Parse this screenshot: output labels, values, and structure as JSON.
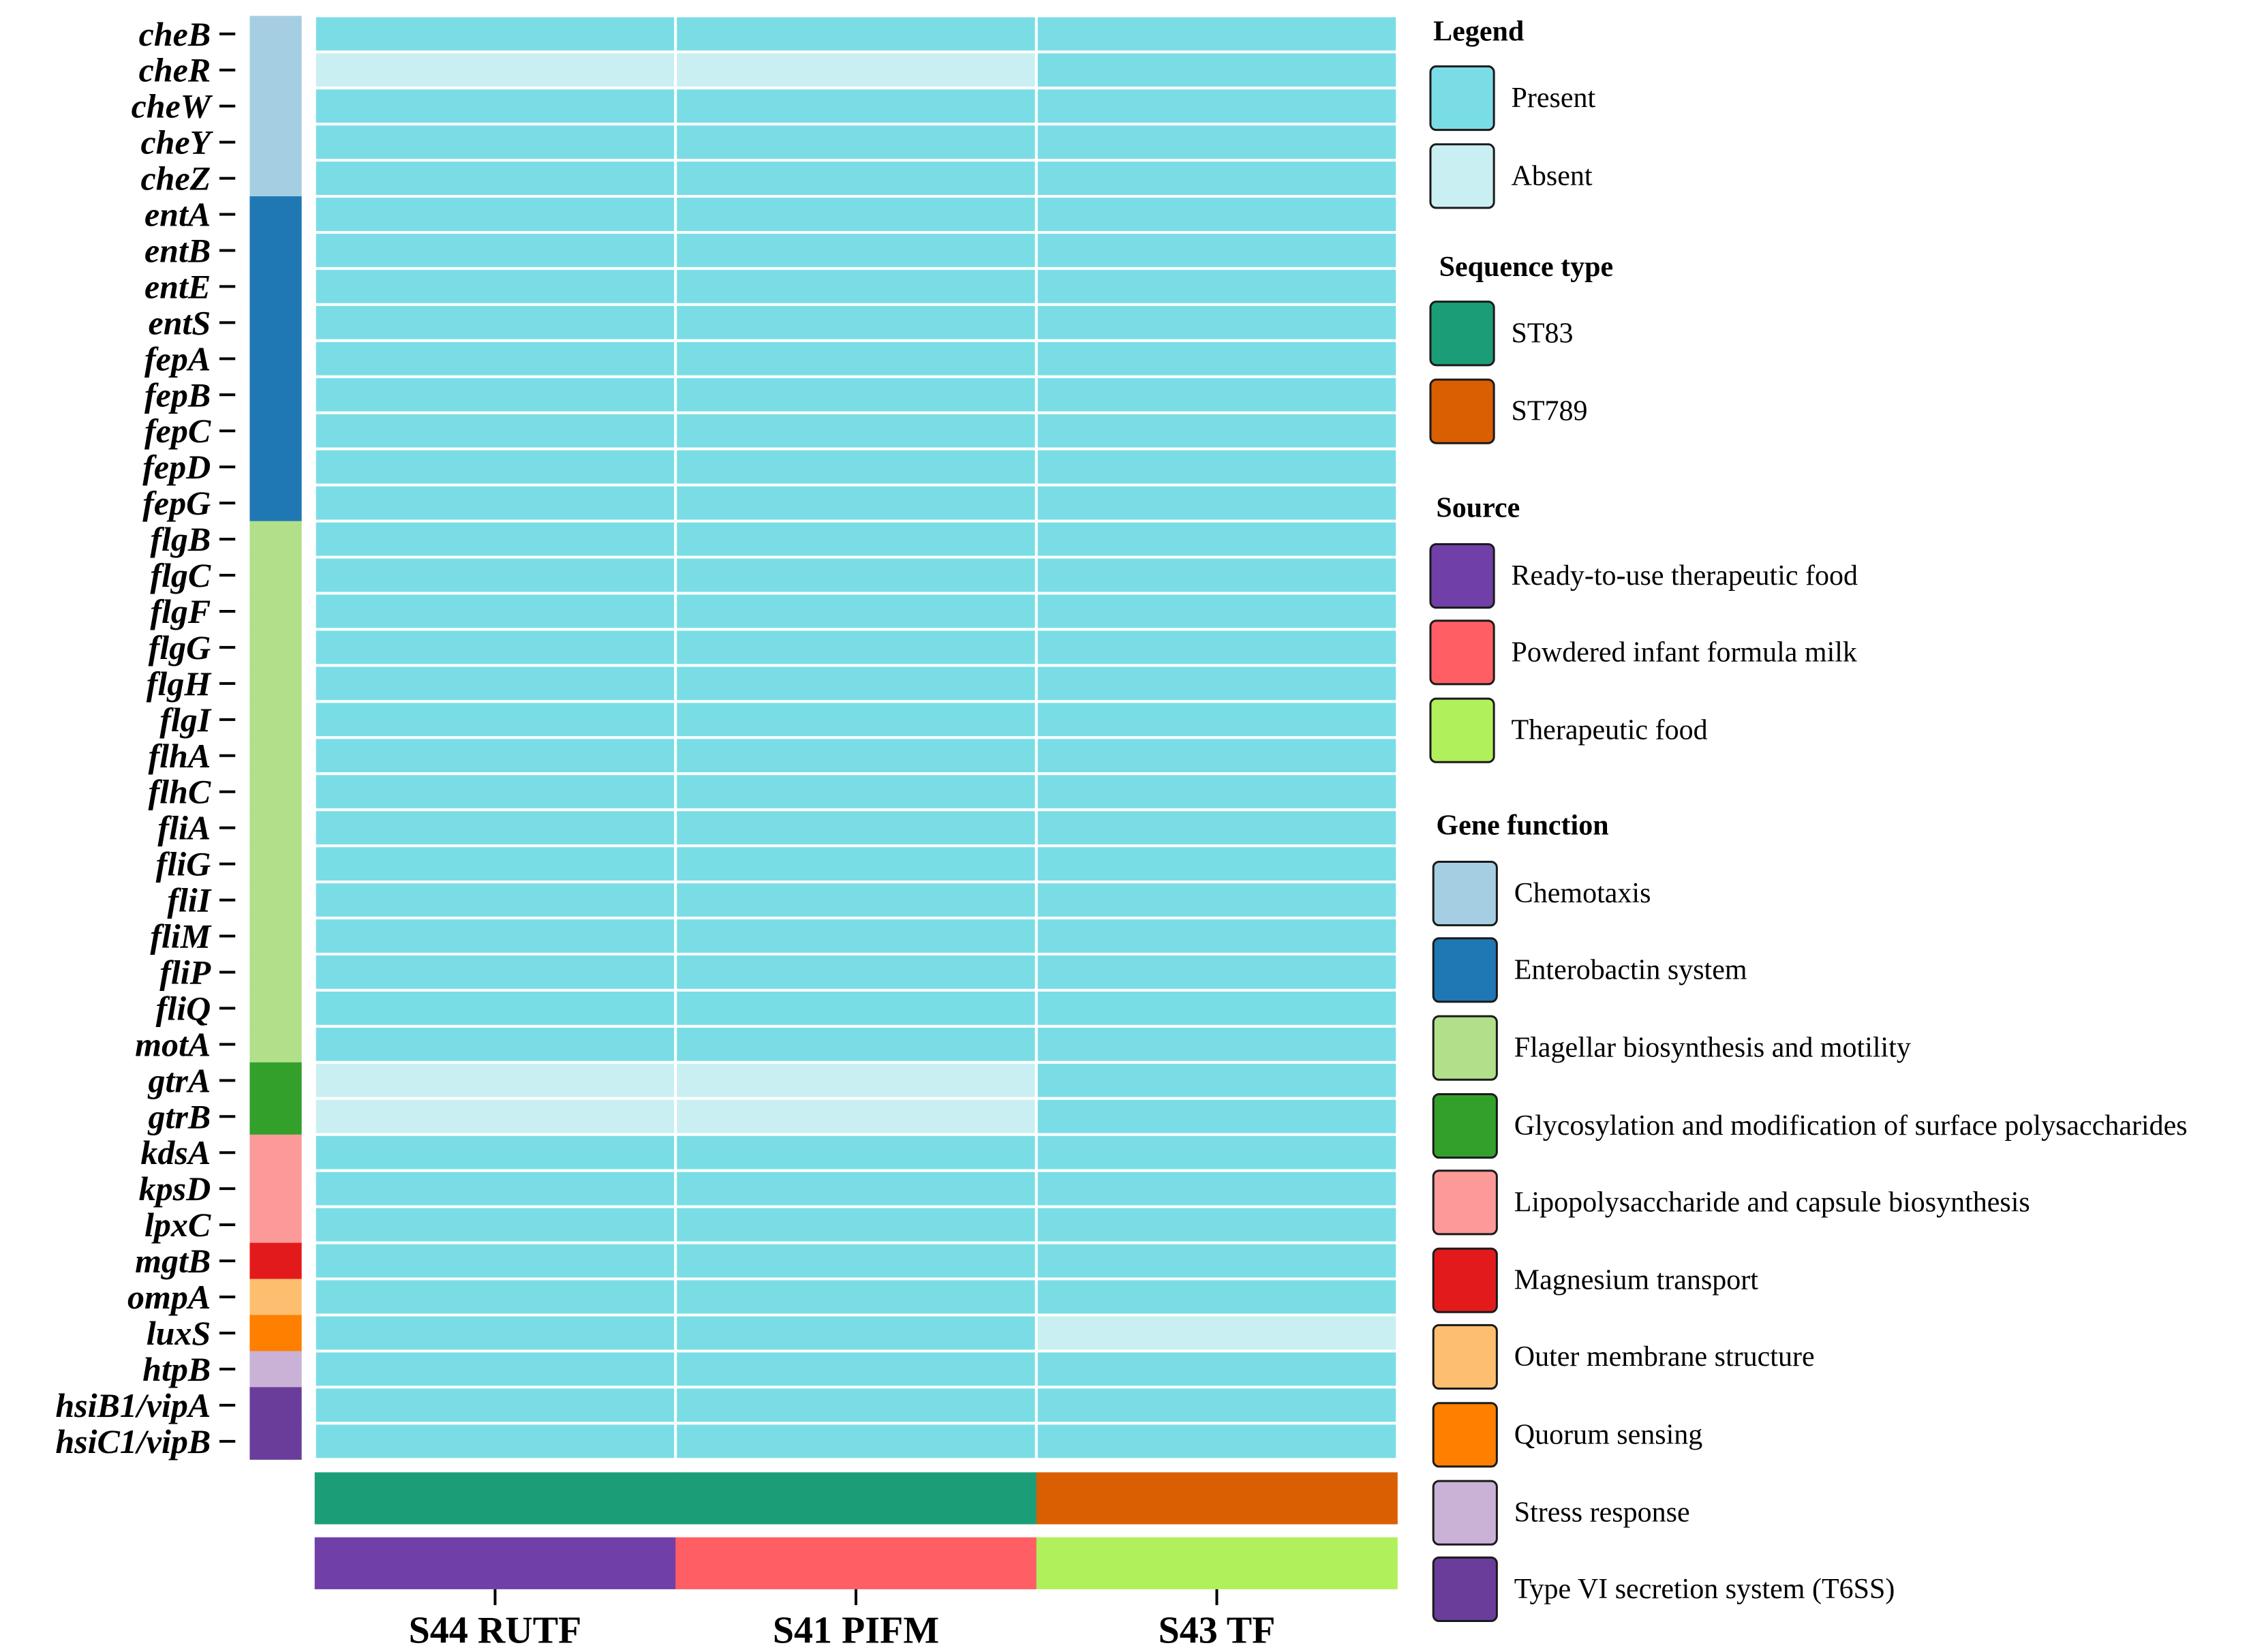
{
  "chart_data": {
    "type": "heatmap",
    "title": "",
    "samples": [
      "S44 RUTF",
      "S41 PIFM",
      "S43 TF"
    ],
    "genes": [
      "cheB",
      "cheR",
      "cheW",
      "cheY",
      "cheZ",
      "entA",
      "entB",
      "entE",
      "entS",
      "fepA",
      "fepB",
      "fepC",
      "fepD",
      "fepG",
      "flgB",
      "flgC",
      "flgF",
      "flgG",
      "flgH",
      "flgI",
      "flhA",
      "flhC",
      "fliA",
      "fliG",
      "fliI",
      "fliM",
      "fliP",
      "fliQ",
      "motA",
      "gtrA",
      "gtrB",
      "kdsA",
      "kpsD",
      "lpxC",
      "mgtB",
      "ompA",
      "luxS",
      "htpB",
      "hsiB1/vipA",
      "hsiC1/vipB"
    ],
    "gene_function_index": [
      0,
      0,
      0,
      0,
      0,
      1,
      1,
      1,
      1,
      1,
      1,
      1,
      1,
      1,
      2,
      2,
      2,
      2,
      2,
      2,
      2,
      2,
      2,
      2,
      2,
      2,
      2,
      2,
      2,
      3,
      3,
      4,
      4,
      4,
      5,
      6,
      7,
      8,
      9,
      9
    ],
    "presence": [
      [
        1,
        1,
        1
      ],
      [
        0,
        0,
        1
      ],
      [
        1,
        1,
        1
      ],
      [
        1,
        1,
        1
      ],
      [
        1,
        1,
        1
      ],
      [
        1,
        1,
        1
      ],
      [
        1,
        1,
        1
      ],
      [
        1,
        1,
        1
      ],
      [
        1,
        1,
        1
      ],
      [
        1,
        1,
        1
      ],
      [
        1,
        1,
        1
      ],
      [
        1,
        1,
        1
      ],
      [
        1,
        1,
        1
      ],
      [
        1,
        1,
        1
      ],
      [
        1,
        1,
        1
      ],
      [
        1,
        1,
        1
      ],
      [
        1,
        1,
        1
      ],
      [
        1,
        1,
        1
      ],
      [
        1,
        1,
        1
      ],
      [
        1,
        1,
        1
      ],
      [
        1,
        1,
        1
      ],
      [
        1,
        1,
        1
      ],
      [
        1,
        1,
        1
      ],
      [
        1,
        1,
        1
      ],
      [
        1,
        1,
        1
      ],
      [
        1,
        1,
        1
      ],
      [
        1,
        1,
        1
      ],
      [
        1,
        1,
        1
      ],
      [
        1,
        1,
        1
      ],
      [
        0,
        0,
        1
      ],
      [
        0,
        0,
        1
      ],
      [
        1,
        1,
        1
      ],
      [
        1,
        1,
        1
      ],
      [
        1,
        1,
        1
      ],
      [
        1,
        1,
        1
      ],
      [
        1,
        1,
        1
      ],
      [
        1,
        1,
        0
      ],
      [
        1,
        1,
        1
      ],
      [
        1,
        1,
        1
      ],
      [
        1,
        1,
        1
      ]
    ],
    "sample_sequence_type_index": [
      0,
      0,
      1
    ],
    "sample_source_index": [
      0,
      1,
      2
    ],
    "legend": {
      "presence": {
        "title": "Legend",
        "items": [
          {
            "label": "Present",
            "color": "#7adde6"
          },
          {
            "label": "Absent",
            "color": "#c9eff2"
          }
        ]
      },
      "sequence_type": {
        "title": "Sequence type",
        "items": [
          {
            "label": "ST83",
            "color": "#1b9e77"
          },
          {
            "label": "ST789",
            "color": "#d95f02"
          }
        ]
      },
      "source": {
        "title": "Source",
        "items": [
          {
            "label": "Ready-to-use therapeutic food",
            "color": "#7040a8"
          },
          {
            "label": "Powdered infant formula milk",
            "color": "#ff5e64"
          },
          {
            "label": "Therapeutic food",
            "color": "#b0f05a"
          }
        ]
      },
      "gene_function": {
        "title": "Gene function",
        "items": [
          {
            "label": "Chemotaxis",
            "color": "#a6cee3"
          },
          {
            "label": "Enterobactin system",
            "color": "#1f78b4"
          },
          {
            "label": "Flagellar biosynthesis and motility",
            "color": "#b2df8a"
          },
          {
            "label": "Glycosylation and modification of surface polysaccharides",
            "color": "#33a02c"
          },
          {
            "label": "Lipopolysaccharide and capsule biosynthesis",
            "color": "#fb9a99"
          },
          {
            "label": "Magnesium transport",
            "color": "#e31a1c"
          },
          {
            "label": "Outer membrane structure",
            "color": "#fdbf6f"
          },
          {
            "label": "Quorum sensing",
            "color": "#ff7f00"
          },
          {
            "label": "Stress response",
            "color": "#cab2d6"
          },
          {
            "label": "Type VI secretion system (T6SS)",
            "color": "#6a3d9a"
          }
        ]
      }
    }
  }
}
